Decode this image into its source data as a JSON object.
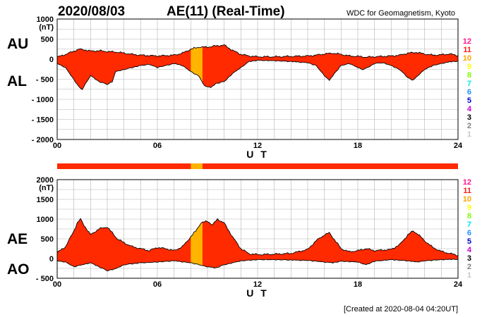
{
  "header": {
    "date": "2020/08/03",
    "title": "AE(11) (Real-Time)",
    "source": "WDC for Geomagnetism, Kyoto"
  },
  "footer": {
    "created": "[Created at 2020-08-04 04:20UT]"
  },
  "colors": {
    "fill_main": "#ff2a00",
    "fill_highlight": "#ffb400",
    "outline": "#000000",
    "grid": "#b4b4b4"
  },
  "station_scale": [
    {
      "label": "12",
      "color": "#ff1493"
    },
    {
      "label": "11",
      "color": "#ff1a1a"
    },
    {
      "label": "10",
      "color": "#ffa500"
    },
    {
      "label": "9",
      "color": "#ffff00"
    },
    {
      "label": "8",
      "color": "#7cfc00"
    },
    {
      "label": "7",
      "color": "#00e5ee"
    },
    {
      "label": "6",
      "color": "#1e90ff"
    },
    {
      "label": "5",
      "color": "#0000cd"
    },
    {
      "label": "4",
      "color": "#cc00cc"
    },
    {
      "label": "3",
      "color": "#000000"
    },
    {
      "label": "2",
      "color": "#808080"
    },
    {
      "label": "1",
      "color": "#c8c8c8"
    }
  ],
  "chart_data": [
    {
      "type": "area",
      "upper_label": "AU",
      "lower_label": "AL",
      "unit": "(nT)",
      "xlabel": "U T",
      "xlim": [
        0,
        24
      ],
      "xticks": [
        "00",
        "06",
        "12",
        "18",
        "24"
      ],
      "ylim": [
        -2000,
        1000
      ],
      "yticks": [
        "1000",
        "500",
        "0",
        "- 500",
        "- 1000",
        "- 1500",
        "- 2000"
      ],
      "grid": true,
      "highlight_hours": [
        [
          8.0,
          8.7
        ]
      ],
      "series": [
        {
          "name": "AU",
          "x": [
            0,
            0.5,
            1,
            1.3,
            1.7,
            2,
            2.5,
            3,
            3.5,
            4,
            4.5,
            5,
            5.5,
            6,
            6.5,
            7,
            7.5,
            8,
            8.5,
            9,
            9.5,
            10,
            10.5,
            11,
            11.5,
            12,
            13,
            14,
            15,
            15.5,
            16,
            16.5,
            17,
            17.5,
            18,
            18.5,
            19,
            20,
            20.5,
            21,
            21.5,
            22,
            22.5,
            23,
            23.5,
            24
          ],
          "values": [
            50,
            120,
            200,
            250,
            230,
            200,
            210,
            190,
            180,
            150,
            120,
            100,
            90,
            80,
            90,
            100,
            150,
            250,
            300,
            300,
            330,
            350,
            220,
            120,
            80,
            60,
            60,
            70,
            80,
            100,
            130,
            150,
            120,
            80,
            70,
            50,
            60,
            80,
            100,
            150,
            170,
            130,
            100,
            110,
            130,
            90
          ]
        },
        {
          "name": "AL",
          "x": [
            0,
            0.5,
            1,
            1.3,
            1.5,
            1.7,
            2,
            2.5,
            3,
            3.3,
            3.5,
            4,
            4.5,
            5,
            5.5,
            6,
            6.5,
            7,
            7.5,
            8,
            8.5,
            8.8,
            9.2,
            9.5,
            10,
            10.5,
            11,
            11.5,
            12,
            13,
            14,
            15,
            15.5,
            16,
            16.3,
            16.6,
            17,
            17.5,
            18,
            18.3,
            18.6,
            19,
            19.5,
            20,
            20.5,
            21,
            21.3,
            21.6,
            22,
            22.5,
            23,
            23.5,
            24
          ],
          "values": [
            -100,
            -200,
            -500,
            -680,
            -750,
            -600,
            -400,
            -550,
            -620,
            -550,
            -300,
            -250,
            -200,
            -150,
            -120,
            -200,
            -150,
            -100,
            -150,
            -300,
            -420,
            -650,
            -700,
            -600,
            -550,
            -350,
            -200,
            -50,
            -20,
            -30,
            -50,
            -80,
            -150,
            -400,
            -520,
            -350,
            -150,
            -100,
            -200,
            -250,
            -200,
            -100,
            -80,
            -150,
            -250,
            -450,
            -520,
            -400,
            -250,
            -150,
            -100,
            -60,
            -40
          ]
        }
      ]
    },
    {
      "type": "area",
      "upper_label": "AE",
      "lower_label": "AO",
      "unit": "(nT)",
      "xlabel": "U T",
      "xlim": [
        0,
        24
      ],
      "xticks": [
        "00",
        "06",
        "12",
        "18",
        "24"
      ],
      "ylim": [
        -500,
        2000
      ],
      "yticks": [
        "2000",
        "1500",
        "1000",
        "500",
        "0",
        "- 500"
      ],
      "grid": true,
      "highlight_hours": [
        [
          8.0,
          8.7
        ]
      ],
      "series": [
        {
          "name": "AE",
          "x": [
            0,
            0.5,
            1,
            1.2,
            1.4,
            1.6,
            2,
            2.5,
            3,
            3.3,
            3.6,
            4,
            4.5,
            5,
            5.5,
            6,
            6.5,
            7,
            7.5,
            8,
            8.3,
            8.6,
            9,
            9.3,
            9.6,
            10,
            10.5,
            11,
            11.5,
            12,
            13,
            14,
            15,
            15.5,
            16,
            16.3,
            16.6,
            17,
            17.5,
            18,
            18.5,
            19,
            20,
            20.5,
            21,
            21.3,
            21.6,
            22,
            22.5,
            23,
            23.5,
            24
          ],
          "values": [
            150,
            300,
            700,
            900,
            1000,
            850,
            600,
            750,
            800,
            650,
            500,
            400,
            300,
            250,
            200,
            280,
            250,
            200,
            300,
            550,
            700,
            900,
            950,
            850,
            1000,
            900,
            550,
            250,
            120,
            100,
            110,
            130,
            230,
            450,
            600,
            650,
            480,
            250,
            170,
            200,
            250,
            200,
            230,
            350,
            600,
            700,
            620,
            450,
            280,
            180,
            130,
            80
          ]
        },
        {
          "name": "AO",
          "x": [
            0,
            0.5,
            1,
            1.5,
            2,
            2.5,
            3,
            3.5,
            4,
            5,
            6,
            7,
            8,
            8.5,
            9,
            9.5,
            10,
            10.5,
            11,
            12,
            13,
            14,
            15,
            16,
            16.5,
            17,
            18,
            18.5,
            19,
            20,
            21,
            21.5,
            22,
            23,
            24
          ],
          "values": [
            -50,
            -80,
            -200,
            -150,
            -100,
            -200,
            -300,
            -250,
            -150,
            -100,
            -80,
            -50,
            -100,
            -150,
            -200,
            -230,
            -150,
            -100,
            -50,
            -20,
            -20,
            -30,
            -40,
            -80,
            -100,
            -60,
            -80,
            -150,
            -60,
            -20,
            -50,
            -80,
            -50,
            -20,
            -10
          ]
        }
      ]
    }
  ]
}
